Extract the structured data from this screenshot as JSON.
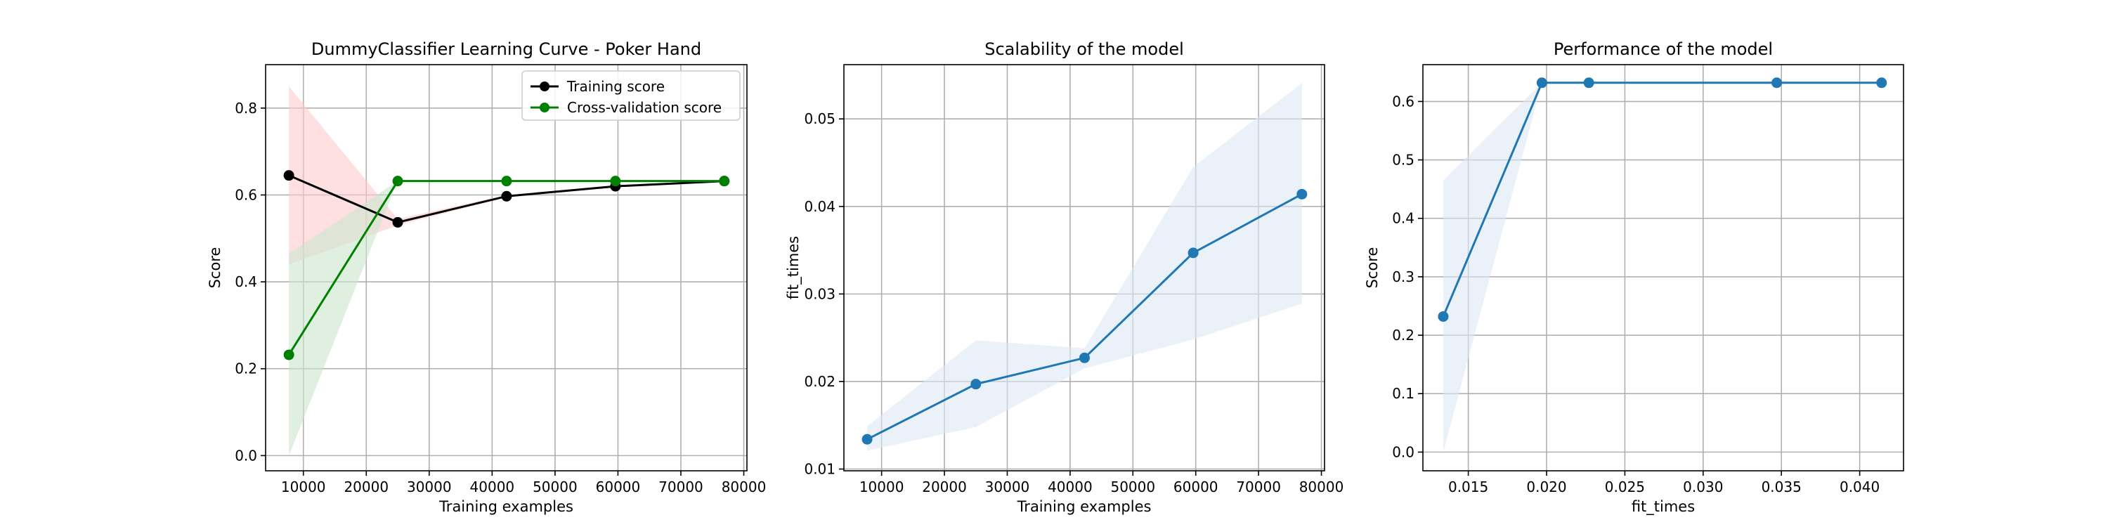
{
  "chart_data": [
    {
      "type": "line",
      "title": "DummyClassifier Learning Curve - Poker Hand",
      "xlabel": "Training examples",
      "ylabel": "Score",
      "xlim": [
        4000,
        80500
      ],
      "ylim": [
        -0.035,
        0.9
      ],
      "grid": true,
      "legend_position": "top-right",
      "xticks": [
        10000,
        20000,
        30000,
        40000,
        50000,
        60000,
        70000,
        80000
      ],
      "xtick_labels": [
        "10000",
        "20000",
        "30000",
        "40000",
        "50000",
        "60000",
        "70000",
        "80000"
      ],
      "yticks": [
        0.0,
        0.2,
        0.4,
        0.6,
        0.8
      ],
      "ytick_labels": [
        "0.0",
        "0.2",
        "0.4",
        "0.6",
        "0.8"
      ],
      "x": [
        7700,
        25000,
        42300,
        59600,
        76900
      ],
      "series": [
        {
          "name": "Training score",
          "color": "#000000",
          "band_color": "#ffcccc",
          "values": [
            0.645,
            0.537,
            0.597,
            0.62,
            0.632
          ],
          "lower": [
            0.44,
            0.53,
            0.595,
            0.619,
            0.632
          ],
          "upper": [
            0.85,
            0.545,
            0.6,
            0.622,
            0.632
          ]
        },
        {
          "name": "Cross-validation score",
          "color": "#008000",
          "band_color": "#cce6cc",
          "values": [
            0.232,
            0.632,
            0.632,
            0.632,
            0.632
          ],
          "lower": [
            0.0,
            0.632,
            0.632,
            0.632,
            0.632
          ],
          "upper": [
            0.465,
            0.632,
            0.632,
            0.632,
            0.632
          ]
        }
      ]
    },
    {
      "type": "line",
      "title": "Scalability of the model",
      "xlabel": "Training examples",
      "ylabel": "fit_times",
      "xlim": [
        4000,
        80500
      ],
      "ylim": [
        0.0098,
        0.0562
      ],
      "grid": true,
      "xticks": [
        10000,
        20000,
        30000,
        40000,
        50000,
        60000,
        70000,
        80000
      ],
      "xtick_labels": [
        "10000",
        "20000",
        "30000",
        "40000",
        "50000",
        "60000",
        "70000",
        "80000"
      ],
      "yticks": [
        0.01,
        0.02,
        0.03,
        0.04,
        0.05
      ],
      "ytick_labels": [
        "0.01",
        "0.02",
        "0.03",
        "0.04",
        "0.05"
      ],
      "x": [
        7700,
        25000,
        42300,
        59600,
        76900
      ],
      "series": [
        {
          "color": "#1f77b4",
          "band_color": "#dde8f5",
          "values": [
            0.0134,
            0.0197,
            0.0227,
            0.0347,
            0.0414
          ],
          "lower": [
            0.0121,
            0.0148,
            0.0215,
            0.0248,
            0.0289
          ],
          "upper": [
            0.0149,
            0.0247,
            0.0238,
            0.0445,
            0.0541
          ]
        }
      ]
    },
    {
      "type": "line",
      "title": "Performance of the model",
      "xlabel": "fit_times",
      "ylabel": "Score",
      "xlim": [
        0.0121,
        0.0428
      ],
      "ylim": [
        -0.032,
        0.663
      ],
      "grid": true,
      "xticks": [
        0.015,
        0.02,
        0.025,
        0.03,
        0.035,
        0.04
      ],
      "xtick_labels": [
        "0.015",
        "0.020",
        "0.025",
        "0.030",
        "0.035",
        "0.040"
      ],
      "yticks": [
        0.0,
        0.1,
        0.2,
        0.3,
        0.4,
        0.5,
        0.6
      ],
      "ytick_labels": [
        "0.0",
        "0.1",
        "0.2",
        "0.3",
        "0.4",
        "0.5",
        "0.6"
      ],
      "x": [
        0.0134,
        0.0197,
        0.0227,
        0.0347,
        0.0414
      ],
      "series": [
        {
          "color": "#1f77b4",
          "band_color": "#dde8f5",
          "values": [
            0.232,
            0.632,
            0.632,
            0.632,
            0.632
          ],
          "lower": [
            0.0,
            0.632,
            0.632,
            0.632,
            0.632
          ],
          "upper": [
            0.465,
            0.632,
            0.632,
            0.632,
            0.632
          ]
        }
      ]
    }
  ]
}
